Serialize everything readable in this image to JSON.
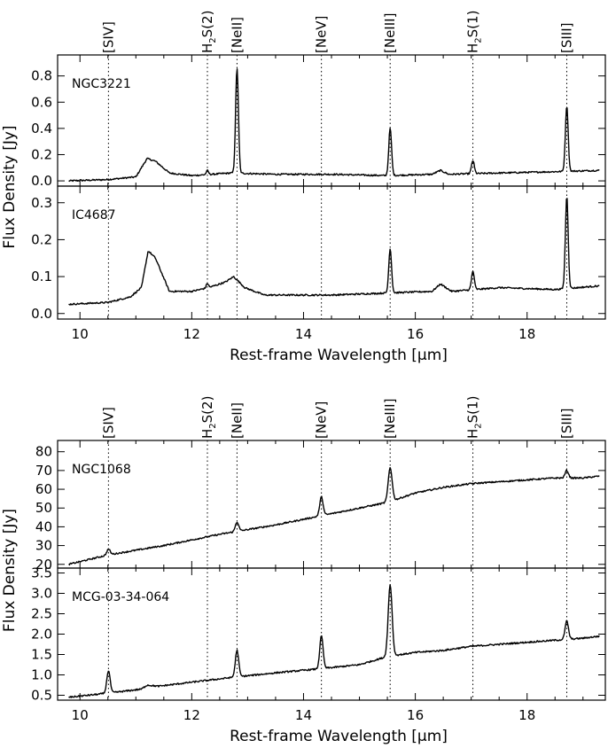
{
  "chart_data": [
    {
      "type": "line",
      "xlabel": "Rest-frame Wavelength [μm]",
      "ylabel": "Flux Density [Jy]",
      "xlim": [
        9.6,
        19.4
      ],
      "xticks": [
        10,
        12,
        14,
        16,
        18
      ],
      "emission_lines": [
        {
          "label": "[SIV]",
          "sup": "",
          "x": 10.51
        },
        {
          "label": "H2S(2)",
          "sub": "2",
          "x": 12.28
        },
        {
          "label": "[NeII]",
          "x": 12.81
        },
        {
          "label": "[NeV]",
          "x": 14.32
        },
        {
          "label": "[NeIII]",
          "x": 15.55
        },
        {
          "label": "H2S(1)",
          "sub": "2",
          "x": 17.03
        },
        {
          "label": "[SIII]",
          "x": 18.71
        }
      ],
      "panels": [
        {
          "name": "NGC3221",
          "ylim": [
            -0.04,
            0.96
          ],
          "yticks": [
            0.0,
            0.2,
            0.4,
            0.6,
            0.8
          ],
          "tick_labels": [
            "0.0",
            "0.2",
            "0.4",
            "0.6",
            "0.8"
          ],
          "baseline": [
            [
              9.8,
              0.0
            ],
            [
              10.5,
              0.01
            ],
            [
              11.0,
              0.03
            ],
            [
              11.2,
              0.17
            ],
            [
              11.35,
              0.15
            ],
            [
              11.6,
              0.06
            ],
            [
              12.0,
              0.04
            ],
            [
              12.7,
              0.06
            ],
            [
              13.5,
              0.05
            ],
            [
              14.5,
              0.05
            ],
            [
              15.5,
              0.04
            ],
            [
              16.3,
              0.05
            ],
            [
              16.45,
              0.08
            ],
            [
              16.6,
              0.05
            ],
            [
              17.5,
              0.06
            ],
            [
              18.5,
              0.07
            ],
            [
              19.3,
              0.08
            ]
          ],
          "lines": [
            [
              12.28,
              0.03,
              0.02
            ],
            [
              12.81,
              0.8,
              0.025
            ],
            [
              15.55,
              0.36,
              0.025
            ],
            [
              17.03,
              0.1,
              0.025
            ],
            [
              18.71,
              0.5,
              0.025
            ]
          ]
        },
        {
          "name": "IC4687",
          "ylim": [
            -0.015,
            0.345
          ],
          "yticks": [
            0.0,
            0.1,
            0.2,
            0.3
          ],
          "tick_labels": [
            "0.0",
            "0.1",
            "0.2",
            "0.3"
          ],
          "baseline": [
            [
              9.8,
              0.025
            ],
            [
              10.5,
              0.03
            ],
            [
              10.9,
              0.045
            ],
            [
              11.1,
              0.07
            ],
            [
              11.22,
              0.17
            ],
            [
              11.35,
              0.15
            ],
            [
              11.6,
              0.06
            ],
            [
              12.0,
              0.06
            ],
            [
              12.3,
              0.07
            ],
            [
              12.6,
              0.085
            ],
            [
              12.75,
              0.1
            ],
            [
              12.95,
              0.07
            ],
            [
              13.3,
              0.05
            ],
            [
              14.5,
              0.05
            ],
            [
              15.4,
              0.055
            ],
            [
              16.3,
              0.06
            ],
            [
              16.45,
              0.08
            ],
            [
              16.65,
              0.06
            ],
            [
              17.5,
              0.07
            ],
            [
              18.5,
              0.065
            ],
            [
              19.3,
              0.075
            ]
          ],
          "lines": [
            [
              12.28,
              0.012,
              0.02
            ],
            [
              15.55,
              0.12,
              0.025
            ],
            [
              17.03,
              0.05,
              0.025
            ],
            [
              18.71,
              0.25,
              0.025
            ]
          ]
        }
      ]
    },
    {
      "type": "line",
      "xlabel": "Rest-frame Wavelength [μm]",
      "ylabel": "Flux Density [Jy]",
      "xlim": [
        9.6,
        19.4
      ],
      "xticks": [
        10,
        12,
        14,
        16,
        18
      ],
      "emission_lines": [
        {
          "label": "[SIV]",
          "x": 10.51
        },
        {
          "label": "H2S(2)",
          "sub": "2",
          "x": 12.28
        },
        {
          "label": "[NeII]",
          "x": 12.81
        },
        {
          "label": "[NeV]",
          "x": 14.32
        },
        {
          "label": "[NeIII]",
          "x": 15.55
        },
        {
          "label": "H2S(1)",
          "sub": "2",
          "x": 17.03
        },
        {
          "label": "[SIII]",
          "x": 18.71
        }
      ],
      "panels": [
        {
          "name": "NGC1068",
          "ylim": [
            18,
            86
          ],
          "yticks": [
            20,
            30,
            40,
            50,
            60,
            70,
            80
          ],
          "tick_labels": [
            "20",
            "30",
            "40",
            "50",
            "60",
            "70",
            "80"
          ],
          "baseline": [
            [
              9.8,
              20
            ],
            [
              10.5,
              25
            ],
            [
              11.5,
              30
            ],
            [
              12.5,
              36
            ],
            [
              13.5,
              41
            ],
            [
              14.5,
              47
            ],
            [
              15.5,
              53
            ],
            [
              16.0,
              58
            ],
            [
              16.5,
              61
            ],
            [
              17.0,
              63
            ],
            [
              17.5,
              64
            ],
            [
              18.0,
              65
            ],
            [
              18.5,
              66
            ],
            [
              19.0,
              66
            ],
            [
              19.3,
              67
            ]
          ],
          "lines": [
            [
              10.51,
              3,
              0.03
            ],
            [
              12.81,
              5,
              0.03
            ],
            [
              14.32,
              10,
              0.03
            ],
            [
              15.55,
              18,
              0.035
            ],
            [
              18.71,
              4,
              0.03
            ]
          ]
        },
        {
          "name": "MCG-03-34-064",
          "ylim": [
            0.38,
            3.62
          ],
          "yticks": [
            0.5,
            1.0,
            1.5,
            2.0,
            2.5,
            3.0,
            3.5
          ],
          "tick_labels": [
            "0.5",
            "1.0",
            "1.5",
            "2.0",
            "2.5",
            "3.0",
            "3.5"
          ],
          "baseline": [
            [
              9.8,
              0.45
            ],
            [
              10.5,
              0.55
            ],
            [
              11.1,
              0.65
            ],
            [
              11.2,
              0.75
            ],
            [
              11.4,
              0.72
            ],
            [
              12.0,
              0.82
            ],
            [
              12.8,
              0.95
            ],
            [
              13.5,
              1.05
            ],
            [
              14.3,
              1.15
            ],
            [
              15.0,
              1.25
            ],
            [
              15.5,
              1.45
            ],
            [
              16.0,
              1.55
            ],
            [
              16.5,
              1.6
            ],
            [
              17.0,
              1.7
            ],
            [
              17.5,
              1.75
            ],
            [
              18.0,
              1.8
            ],
            [
              18.5,
              1.85
            ],
            [
              19.0,
              1.9
            ],
            [
              19.3,
              1.95
            ]
          ],
          "lines": [
            [
              10.51,
              0.55,
              0.03
            ],
            [
              12.81,
              0.65,
              0.03
            ],
            [
              14.32,
              0.8,
              0.03
            ],
            [
              15.55,
              1.75,
              0.035
            ],
            [
              18.71,
              0.45,
              0.03
            ]
          ]
        }
      ]
    }
  ]
}
